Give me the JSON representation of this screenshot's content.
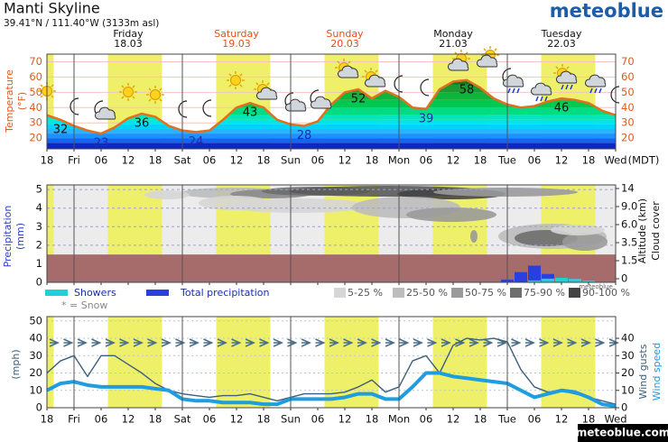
{
  "header": {
    "title": "Manti Skyline",
    "subtitle": "39.41°N / 111.40°W (3133m asl)",
    "logo": "meteoblue",
    "footer": "meteoblue.com",
    "watermark": "meteoblue"
  },
  "chart_data": [
    {
      "type": "line",
      "y_label": "Temperature",
      "y_unit": "(°F)",
      "color": "#e07020",
      "days": [
        {
          "name": "Friday",
          "date": "18.03",
          "color": "#111111"
        },
        {
          "name": "Saturday",
          "date": "19.03",
          "color": "#e0501a"
        },
        {
          "name": "Sunday",
          "date": "20.03",
          "color": "#e0501a"
        },
        {
          "name": "Monday",
          "date": "21.03",
          "color": "#111111"
        },
        {
          "name": "Tuesday",
          "date": "22.03",
          "color": "#111111"
        }
      ],
      "time_labels": [
        "18",
        "Fri",
        "06",
        "12",
        "18",
        "Sat",
        "06",
        "12",
        "18",
        "Sun",
        "06",
        "12",
        "18",
        "Mon",
        "06",
        "12",
        "18",
        "Tue",
        "06",
        "12",
        "18",
        "Wed"
      ],
      "timezone": "(MDT)",
      "values": [
        35,
        32,
        28,
        25,
        23,
        27,
        33,
        36,
        34,
        28,
        25,
        24,
        25,
        32,
        40,
        43,
        40,
        32,
        29,
        28,
        31,
        42,
        50,
        52,
        46,
        51,
        47,
        40,
        39,
        52,
        57,
        58,
        53,
        46,
        42,
        40,
        41,
        44,
        46,
        45,
        43,
        38,
        35
      ],
      "ylim": [
        13,
        75
      ],
      "yticks": [
        20,
        30,
        40,
        50,
        60,
        70
      ],
      "grid": true
    },
    {
      "type": "bar",
      "y_label": "Precipitation",
      "y_unit": "(mm)",
      "y2_label": "Altitude (km)",
      "y2_label2": "Cloud cover",
      "series": [
        {
          "name": "Total precipitation",
          "color": "#2a3fe0",
          "values": [
            0,
            0,
            0,
            0,
            0,
            0,
            0,
            0,
            0,
            0,
            0,
            0,
            0,
            0,
            0,
            0,
            0,
            0,
            0,
            0,
            0,
            0,
            0,
            0,
            0,
            0,
            0,
            0,
            0,
            0,
            0,
            0,
            0,
            0,
            0.15,
            0.55,
            0.9,
            0.45,
            0.25,
            0.2,
            0.1,
            0,
            0
          ]
        },
        {
          "name": "Showers",
          "color": "#1fd0d6",
          "values": [
            0,
            0,
            0,
            0,
            0,
            0,
            0,
            0,
            0,
            0,
            0,
            0,
            0,
            0,
            0,
            0,
            0,
            0,
            0,
            0,
            0,
            0,
            0,
            0,
            0,
            0,
            0,
            0,
            0,
            0,
            0,
            0,
            0,
            0,
            0,
            0,
            0.1,
            0.2,
            0.25,
            0.2,
            0.1,
            0,
            0
          ]
        }
      ],
      "snow_note": "* = Snow",
      "cloud_legend": [
        {
          "label": "5-25 %",
          "color": "#d6d6d6"
        },
        {
          "label": "25-50 %",
          "color": "#bdbdbd"
        },
        {
          "label": "50-75 %",
          "color": "#9a9a9a"
        },
        {
          "label": "75-90 %",
          "color": "#6e6e6e"
        },
        {
          "label": "90-100 %",
          "color": "#444444"
        }
      ],
      "ylim": [
        0,
        5.25
      ],
      "yticks": [
        0,
        1,
        2,
        3,
        4,
        5
      ],
      "y2ticks": [
        0,
        1.5,
        3.5,
        {
          "value": 6,
          "label": "6.0"
        },
        {
          "value": 9,
          "label": "9.0"
        },
        14
      ]
    },
    {
      "type": "line",
      "y_label": "(mph)",
      "series": [
        {
          "name": "Wind gusts",
          "color": "#3d5f7d",
          "values": [
            20,
            27,
            30,
            18,
            30,
            30,
            25,
            20,
            14,
            10,
            8,
            7,
            6,
            7,
            7,
            8,
            6,
            4,
            6,
            8,
            8,
            8,
            9,
            12,
            16,
            9,
            12,
            27,
            30,
            20,
            36,
            40,
            39,
            40,
            38,
            22,
            12,
            9,
            10,
            8,
            6,
            4,
            2
          ]
        },
        {
          "name": "Wind speed",
          "color": "#1e9de0",
          "values": [
            10,
            14,
            15,
            13,
            12,
            12,
            12,
            12,
            11,
            10,
            5,
            4,
            4,
            3,
            3,
            3,
            2,
            2,
            5,
            5,
            5,
            5,
            6,
            8,
            8,
            5,
            5,
            12,
            20,
            20,
            18,
            17,
            16,
            15,
            14,
            10,
            6,
            8,
            10,
            9,
            6,
            2,
            1
          ]
        }
      ],
      "ylim": [
        0,
        52.5
      ],
      "yticks": [
        0,
        10,
        20,
        30,
        40,
        50
      ],
      "y2ticks": [
        0,
        10,
        20,
        30,
        40
      ]
    }
  ]
}
